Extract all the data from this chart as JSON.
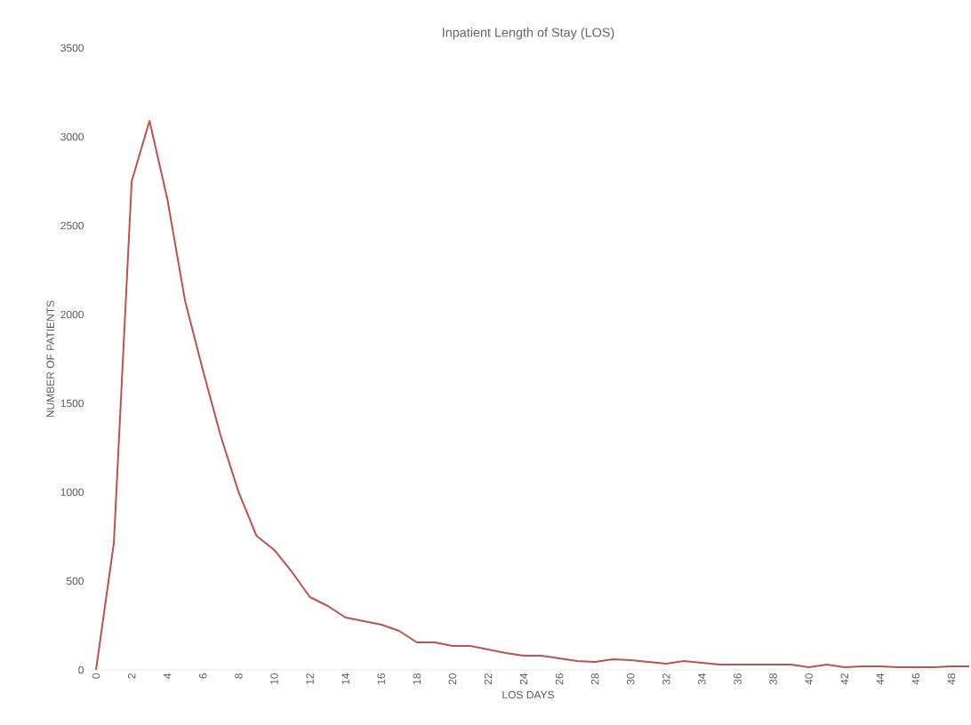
{
  "chart_data": {
    "type": "line",
    "title": "Inpatient Length of Stay (LOS)",
    "xlabel": "LOS DAYS",
    "ylabel": "NUMBER OF PATIENTS",
    "x": [
      0,
      1,
      2,
      3,
      4,
      5,
      6,
      7,
      8,
      9,
      10,
      11,
      12,
      13,
      14,
      15,
      16,
      17,
      18,
      19,
      20,
      21,
      22,
      23,
      24,
      25,
      26,
      27,
      28,
      29,
      30,
      31,
      32,
      33,
      34,
      35,
      36,
      37,
      38,
      39,
      40,
      41,
      42,
      43,
      44,
      45,
      46,
      47,
      48,
      49
    ],
    "series": [
      {
        "color": "#c0504d",
        "values": [
          0,
          715,
          2750,
          3090,
          2650,
          2075,
          1685,
          1315,
          1000,
          755,
          675,
          550,
          410,
          360,
          295,
          275,
          255,
          220,
          155,
          155,
          135,
          135,
          115,
          95,
          80,
          80,
          65,
          50,
          45,
          60,
          55,
          45,
          35,
          50,
          40,
          30,
          30,
          30,
          30,
          30,
          15,
          30,
          15,
          20,
          20,
          15,
          15,
          15,
          20,
          20
        ]
      }
    ],
    "xlim": [
      -0.5,
      49
    ],
    "xticks": [
      0,
      2,
      4,
      6,
      8,
      10,
      12,
      14,
      16,
      18,
      20,
      22,
      24,
      26,
      28,
      30,
      32,
      34,
      36,
      38,
      40,
      42,
      44,
      46,
      48
    ],
    "ylim": [
      0,
      3500
    ],
    "yticks": [
      0,
      500,
      1000,
      1500,
      2000,
      2500,
      3000,
      3500
    ],
    "grid": false,
    "marker": "none",
    "line_style": "solid"
  }
}
